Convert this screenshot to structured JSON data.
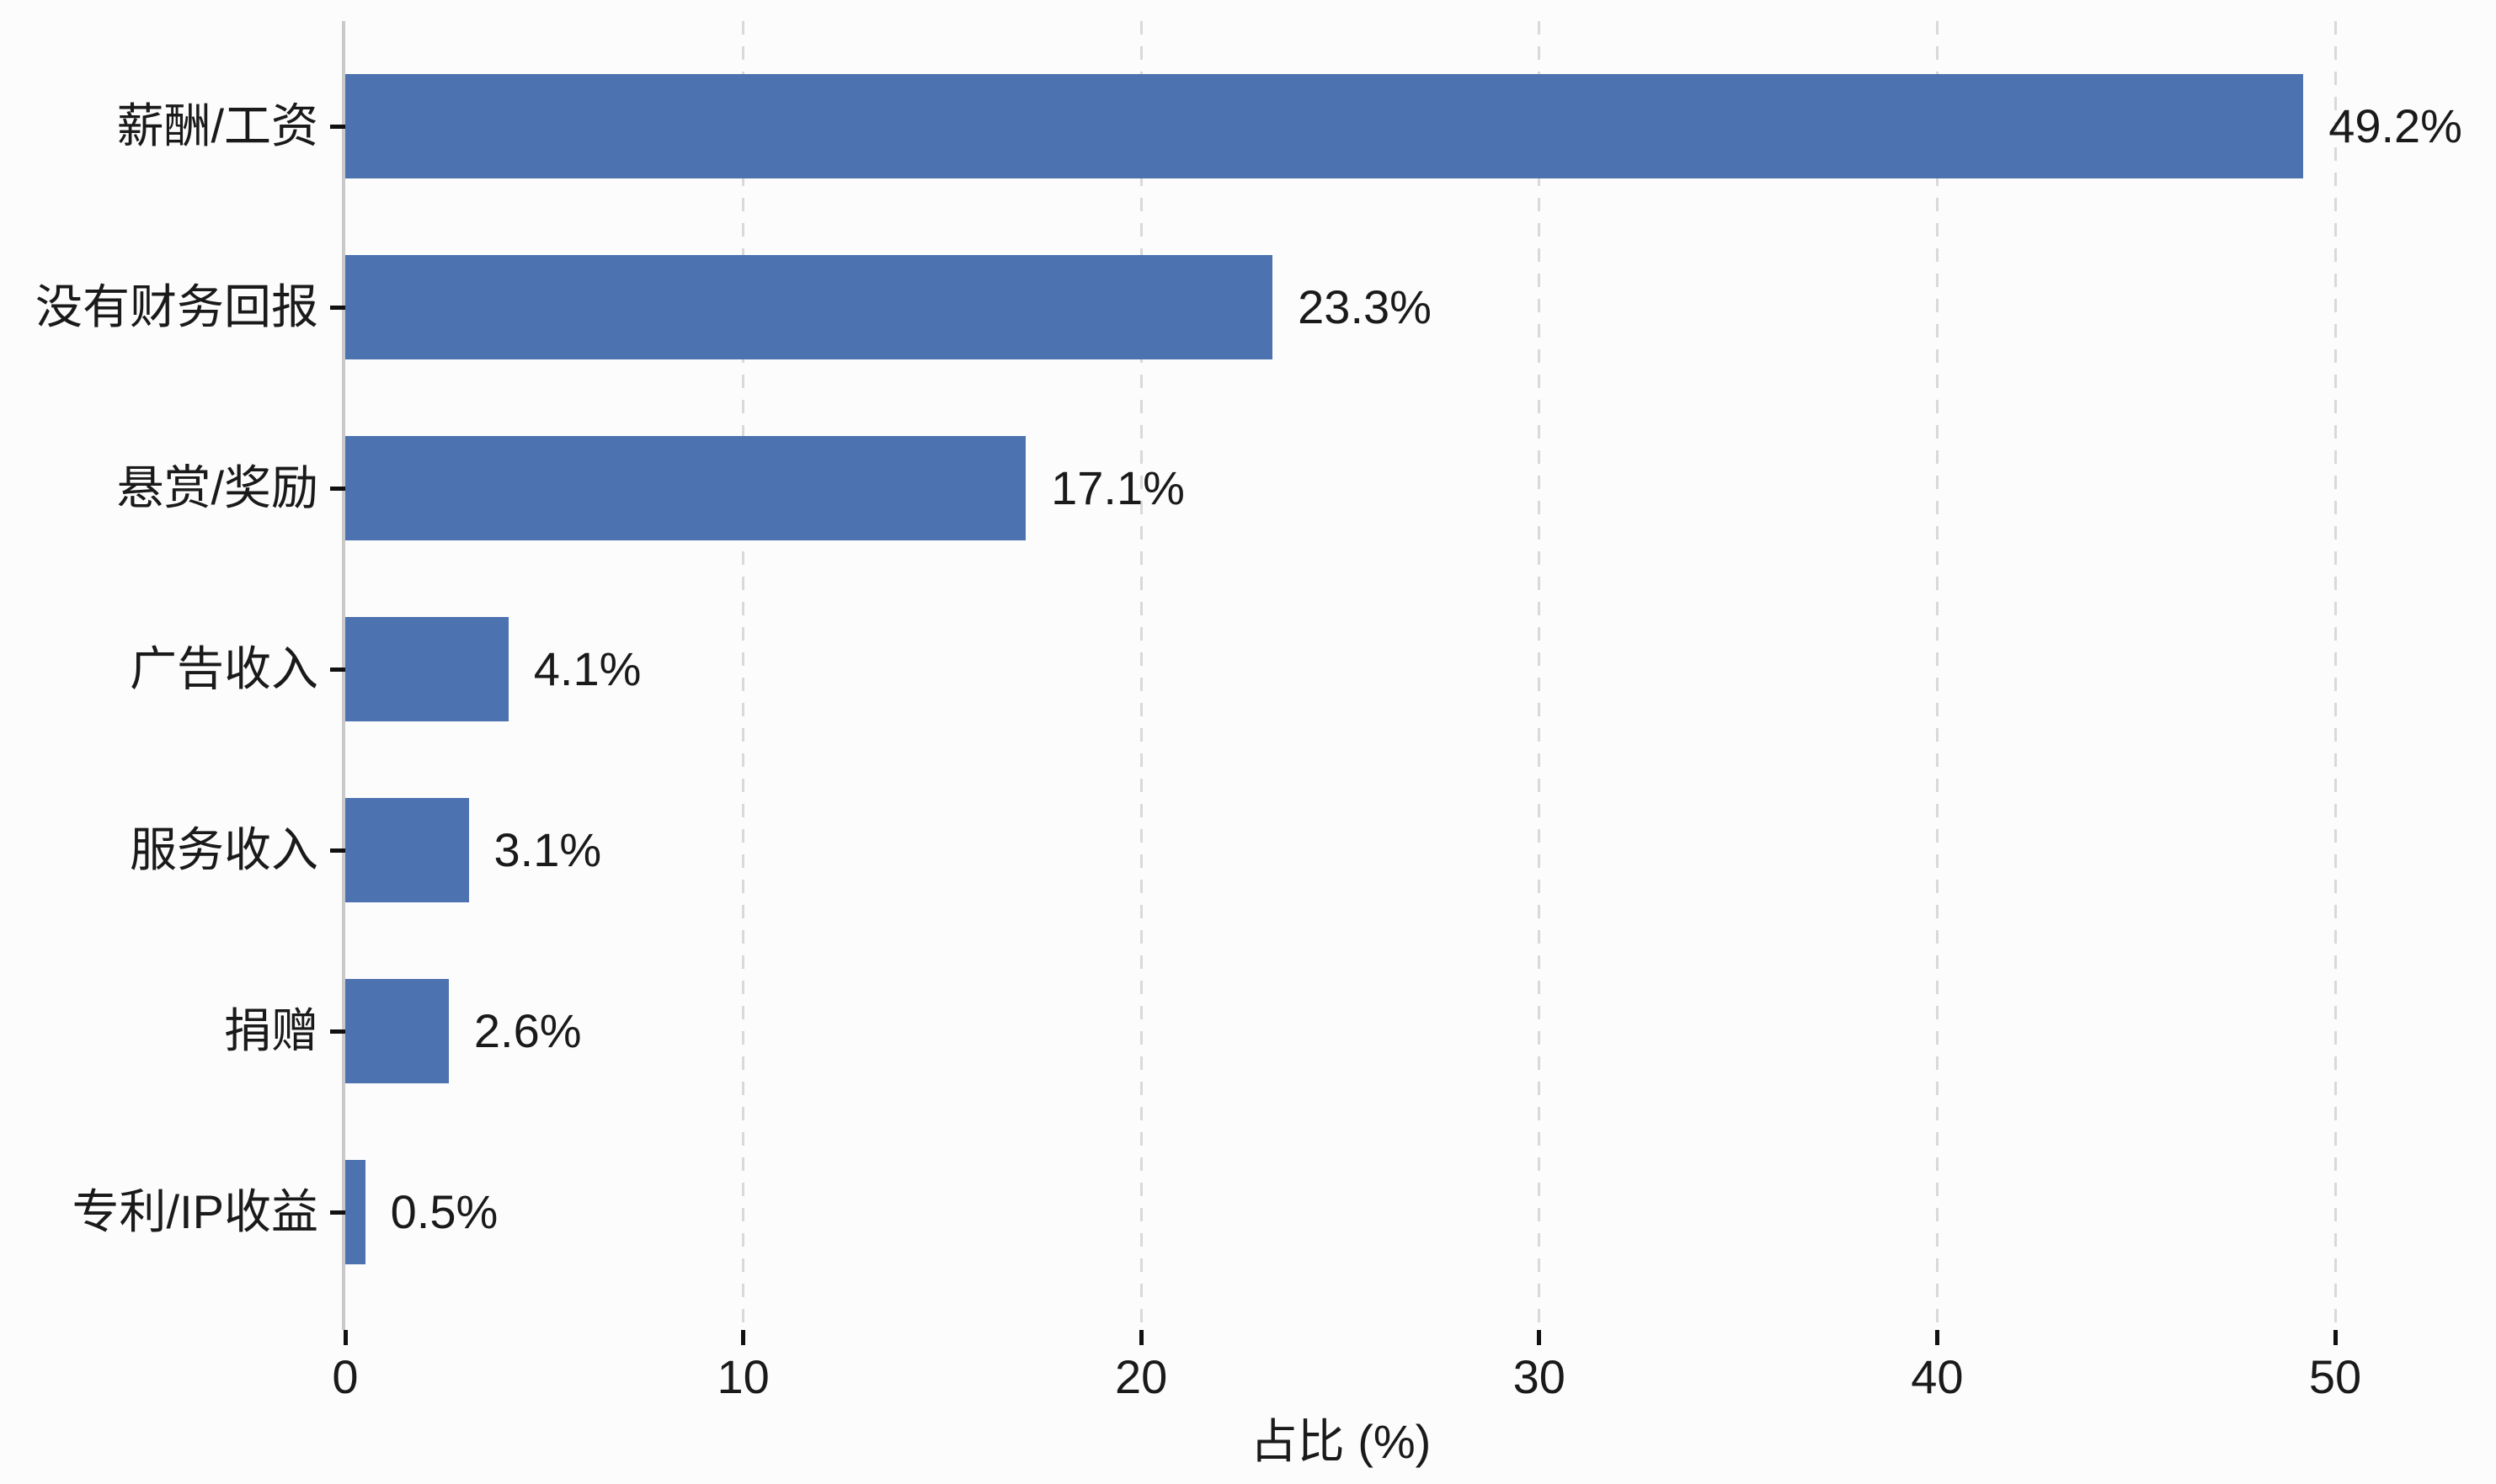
{
  "chart_data": {
    "type": "bar",
    "orientation": "horizontal",
    "title": "",
    "xlabel": "占比 (%)",
    "ylabel": "",
    "categories": [
      "薪酬/工资",
      "没有财务回报",
      "悬赏/奖励",
      "广告收入",
      "服务收入",
      "捐赠",
      "专利/IP收益"
    ],
    "values": [
      49.2,
      23.3,
      17.1,
      4.1,
      3.1,
      2.6,
      0.5
    ],
    "value_labels": [
      "49.2%",
      "23.3%",
      "17.1%",
      "4.1%",
      "3.1%",
      "2.6%",
      "0.5%"
    ],
    "x_ticks": [
      0,
      10,
      20,
      30,
      40,
      50
    ],
    "x_tick_labels": [
      "0",
      "10",
      "20",
      "30",
      "40",
      "50"
    ],
    "xlim": [
      0,
      50
    ],
    "legend": "none",
    "grid": {
      "vertical": true,
      "style": "dashed",
      "color": "#D9D9D9"
    },
    "bar_color": "#4C72B0",
    "axis_color": "#C9C9C9",
    "tick_color": "#111111",
    "text_color": "#1A1A1A",
    "background_color": "#FCFCFC"
  }
}
